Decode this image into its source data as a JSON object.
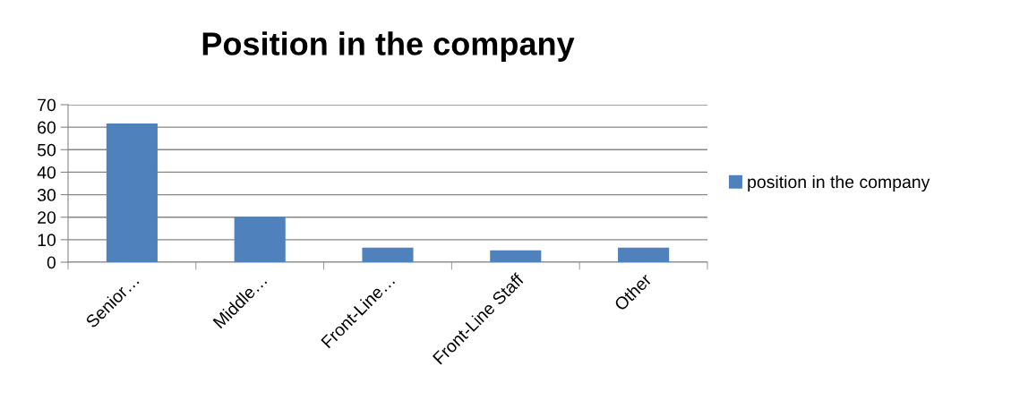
{
  "chart_data": {
    "type": "bar",
    "title": "Position in the company",
    "categories": [
      "Senior…",
      "Middle…",
      "Front-Line…",
      "Front-Line Staff",
      "Other"
    ],
    "series": [
      {
        "name": "position in the company",
        "color": "#4f81bd",
        "values": [
          61.6,
          20.2,
          6.5,
          5.3,
          6.5
        ]
      }
    ],
    "ylim": [
      0,
      70
    ],
    "yticks": [
      0,
      10,
      20,
      30,
      40,
      50,
      60,
      70
    ],
    "grid": "y",
    "legend": "right"
  }
}
